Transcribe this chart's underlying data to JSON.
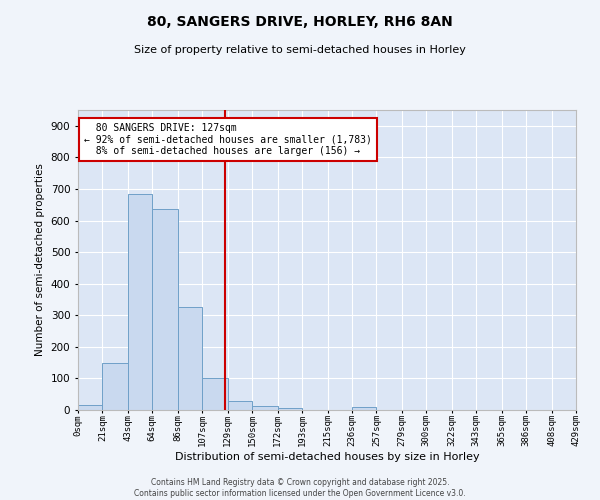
{
  "title_line1": "80, SANGERS DRIVE, HORLEY, RH6 8AN",
  "title_line2": "Size of property relative to semi-detached houses in Horley",
  "xlabel": "Distribution of semi-detached houses by size in Horley",
  "ylabel": "Number of semi-detached properties",
  "property_label": "80 SANGERS DRIVE: 127sqm",
  "pct_smaller": 92,
  "count_smaller": 1783,
  "pct_larger": 8,
  "count_larger": 156,
  "bin_edges": [
    0,
    21,
    43,
    64,
    86,
    107,
    129,
    150,
    172,
    193,
    215,
    236,
    257,
    279,
    300,
    322,
    343,
    365,
    386,
    408,
    429
  ],
  "bin_labels": [
    "0sqm",
    "21sqm",
    "43sqm",
    "64sqm",
    "86sqm",
    "107sqm",
    "129sqm",
    "150sqm",
    "172sqm",
    "193sqm",
    "215sqm",
    "236sqm",
    "257sqm",
    "279sqm",
    "300sqm",
    "322sqm",
    "343sqm",
    "365sqm",
    "386sqm",
    "408sqm",
    "429sqm"
  ],
  "bar_heights": [
    15,
    150,
    685,
    635,
    325,
    100,
    30,
    12,
    5,
    0,
    0,
    8,
    0,
    0,
    0,
    0,
    0,
    0,
    0,
    0
  ],
  "bar_color": "#c9d9ef",
  "bar_edge_color": "#6fa0c8",
  "vline_color": "#cc0000",
  "vline_x": 127,
  "annotation_box_color": "#cc0000",
  "background_color": "#dce6f5",
  "grid_color": "#ffffff",
  "ylim": [
    0,
    950
  ],
  "yticks": [
    0,
    100,
    200,
    300,
    400,
    500,
    600,
    700,
    800,
    900
  ],
  "footer_line1": "Contains HM Land Registry data © Crown copyright and database right 2025.",
  "footer_line2": "Contains public sector information licensed under the Open Government Licence v3.0."
}
